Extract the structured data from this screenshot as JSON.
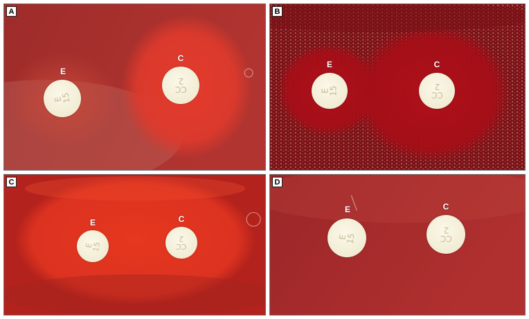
{
  "panels": [
    {
      "tag": "A",
      "disks": [
        {
          "label": "E",
          "text": "E\n15",
          "rotation": -100
        },
        {
          "label": "C",
          "text": "CC\n2",
          "rotation": 180
        }
      ]
    },
    {
      "tag": "B",
      "disks": [
        {
          "label": "E",
          "text": "E\n15",
          "rotation": -90
        },
        {
          "label": "C",
          "text": "CC\n2",
          "rotation": 180
        }
      ]
    },
    {
      "tag": "C",
      "disks": [
        {
          "label": "E",
          "text": "E\n15",
          "rotation": -80
        },
        {
          "label": "C",
          "text": "CC\n2",
          "rotation": 180
        }
      ]
    },
    {
      "tag": "D",
      "disks": [
        {
          "label": "E",
          "text": "E\n15",
          "rotation": -80
        },
        {
          "label": "C",
          "text": "CC\n2",
          "rotation": 180
        }
      ]
    }
  ],
  "colors": {
    "agar_a": "#a82b2a",
    "agar_b": "#8a0d13",
    "agar_c": "#b8211a",
    "agar_d": "#a52a2a",
    "hemolysis_bright": "#e03a26",
    "disk": "#f1ecd3"
  }
}
